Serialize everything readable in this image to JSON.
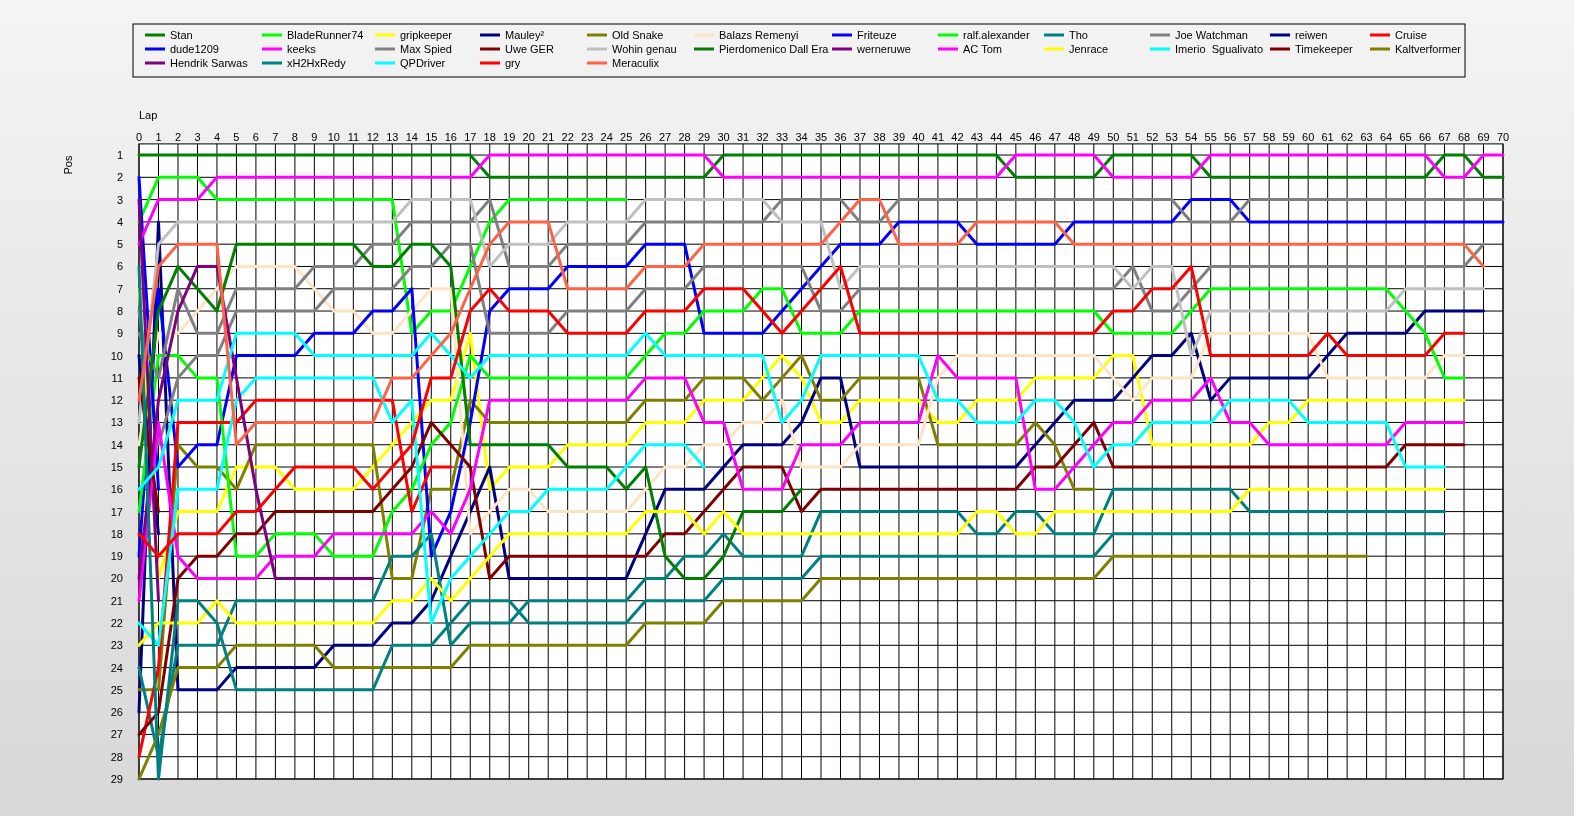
{
  "chart_data": {
    "type": "line",
    "xlabel": "Lap",
    "ylabel": "Pos",
    "xlim": [
      0,
      70
    ],
    "xticks": [
      0,
      1,
      2,
      3,
      4,
      5,
      6,
      7,
      8,
      9,
      10,
      11,
      12,
      13,
      14,
      15,
      16,
      17,
      18,
      19,
      20,
      21,
      22,
      23,
      24,
      25,
      26,
      27,
      28,
      29,
      30,
      31,
      32,
      33,
      34,
      35,
      36,
      37,
      38,
      39,
      40,
      41,
      42,
      43,
      44,
      45,
      46,
      47,
      48,
      49,
      50,
      51,
      52,
      53,
      54,
      55,
      56,
      57,
      58,
      59,
      60,
      61,
      62,
      63,
      64,
      65,
      66,
      67,
      68,
      69,
      70
    ],
    "ylim": [
      29,
      0.5
    ],
    "yticks": [
      1,
      2,
      3,
      4,
      5,
      6,
      7,
      8,
      9,
      10,
      11,
      12,
      13,
      14,
      15,
      16,
      17,
      18,
      19,
      20,
      21,
      22,
      23,
      24,
      25,
      26,
      27,
      28,
      29
    ],
    "grid": true,
    "legend": "top",
    "series": [
      {
        "name": "Stan",
        "color": "#008000",
        "x": [
          0,
          17,
          18,
          29,
          30,
          44,
          45,
          49,
          50,
          54,
          55,
          66,
          67,
          68,
          69,
          70
        ],
        "values": [
          1,
          1,
          2,
          2,
          1,
          1,
          2,
          2,
          1,
          1,
          2,
          2,
          1,
          1,
          2,
          2
        ]
      },
      {
        "name": "BladeRunner74",
        "color": "#00ff00",
        "x": [
          0,
          1,
          3,
          4,
          13,
          14,
          15,
          16,
          17,
          18,
          19,
          25
        ],
        "values": [
          4,
          2,
          2,
          3,
          3,
          9,
          8,
          8,
          6,
          4,
          3,
          3
        ]
      },
      {
        "name": "gripkeeper",
        "color": "#ffff00",
        "x": [
          0,
          1,
          2,
          4,
          5,
          7,
          8,
          11,
          12,
          13,
          14,
          15,
          16,
          17,
          18,
          19,
          21,
          22,
          25,
          26,
          28,
          29,
          31,
          32,
          33,
          34,
          35,
          36,
          37,
          40,
          41,
          42,
          43,
          45,
          46,
          49,
          50,
          51,
          52,
          57,
          58,
          59,
          60,
          68
        ],
        "values": [
          7,
          20,
          17,
          17,
          15,
          15,
          16,
          16,
          15,
          14,
          13,
          12,
          12,
          9,
          16,
          15,
          15,
          14,
          14,
          13,
          13,
          12,
          12,
          11,
          10,
          11,
          13,
          13,
          12,
          12,
          13,
          13,
          12,
          12,
          11,
          11,
          10,
          10,
          14,
          14,
          13,
          13,
          12,
          12
        ]
      },
      {
        "name": "Mauley²",
        "color": "#000080",
        "x": [
          0,
          1,
          2,
          4,
          5,
          9,
          10,
          12,
          13,
          14,
          15,
          16,
          17,
          18,
          19,
          25,
          26,
          27,
          29,
          30,
          31,
          33,
          34,
          35,
          36,
          37,
          45,
          46,
          47,
          48,
          50,
          51,
          52,
          53,
          54,
          55,
          56,
          60,
          61,
          62,
          65,
          66,
          69
        ],
        "values": [
          26,
          4,
          25,
          25,
          24,
          24,
          23,
          23,
          22,
          22,
          21,
          19,
          17,
          15,
          20,
          20,
          18,
          16,
          16,
          15,
          14,
          14,
          13,
          11,
          11,
          15,
          15,
          14,
          13,
          12,
          12,
          11,
          10,
          10,
          9,
          12,
          11,
          11,
          10,
          9,
          9,
          8,
          8
        ]
      },
      {
        "name": "Old Snake",
        "color": "#808000",
        "x": [
          0,
          1,
          2,
          3,
          4,
          5,
          6,
          12,
          13,
          14,
          15,
          16,
          17,
          18,
          25,
          26,
          28,
          29,
          31,
          32,
          33,
          34,
          35,
          36,
          37,
          40,
          41,
          45,
          46,
          47,
          48,
          49
        ],
        "values": [
          25,
          25,
          14,
          15,
          15,
          16,
          14,
          14,
          20,
          20,
          16,
          16,
          12,
          13,
          13,
          12,
          12,
          11,
          11,
          12,
          11,
          10,
          12,
          12,
          11,
          11,
          14,
          14,
          13,
          14,
          16,
          16
        ]
      },
      {
        "name": "Balazs Remenyi",
        "color": "#ffe4c4",
        "x": [
          0,
          1,
          2,
          3,
          4,
          5,
          8,
          9,
          10,
          11,
          12,
          13,
          14,
          15,
          16,
          17,
          18,
          19,
          20,
          21,
          25,
          26,
          27,
          28,
          29,
          30,
          31,
          32,
          33,
          34,
          36,
          37,
          40,
          41,
          42,
          49,
          50,
          51,
          52,
          54,
          55,
          60,
          61,
          66,
          67,
          68
        ],
        "values": [
          14,
          9,
          9,
          8,
          7,
          6,
          6,
          7,
          8,
          8,
          9,
          9,
          8,
          7,
          7,
          18,
          17,
          16,
          16,
          17,
          17,
          16,
          15,
          15,
          14,
          14,
          13,
          13,
          12,
          15,
          15,
          14,
          14,
          11,
          10,
          10,
          11,
          12,
          11,
          11,
          9,
          9,
          11,
          11,
          10,
          10
        ]
      },
      {
        "name": "Friteuze",
        "color": "#0000ff",
        "x": [
          0,
          1,
          2,
          3,
          4,
          5,
          8,
          9,
          11,
          12,
          13,
          14,
          15,
          16,
          17,
          18,
          19,
          21,
          22,
          25,
          26,
          28,
          29,
          32,
          33,
          34,
          35,
          36,
          38,
          39,
          42,
          43,
          47,
          48,
          53,
          54,
          56,
          57,
          70
        ],
        "values": [
          19,
          7,
          15,
          14,
          14,
          10,
          10,
          9,
          9,
          8,
          8,
          7,
          19,
          17,
          13,
          8,
          7,
          7,
          6,
          6,
          5,
          5,
          9,
          9,
          8,
          7,
          6,
          5,
          5,
          4,
          4,
          5,
          5,
          4,
          4,
          3,
          3,
          4,
          4
        ]
      },
      {
        "name": "ralf.alexander",
        "color": "#00ff00",
        "x": [
          0,
          1,
          2,
          3,
          4,
          5,
          6,
          7,
          9,
          10,
          12,
          13,
          14,
          15,
          16,
          17,
          18,
          25,
          26,
          27,
          28,
          29,
          31,
          32,
          33,
          34,
          36,
          37,
          49,
          50,
          53,
          54,
          55,
          64,
          65,
          66,
          67,
          68
        ],
        "values": [
          17,
          10,
          10,
          11,
          11,
          19,
          19,
          18,
          18,
          19,
          19,
          17,
          16,
          14,
          13,
          10,
          11,
          11,
          10,
          9,
          9,
          8,
          8,
          7,
          7,
          9,
          9,
          8,
          8,
          9,
          9,
          8,
          7,
          7,
          8,
          9,
          11,
          11
        ]
      },
      {
        "name": "Tho",
        "color": "#008080",
        "x": [
          0,
          1,
          2,
          4,
          5,
          12,
          13,
          14,
          15,
          16,
          17,
          19,
          20,
          25,
          26,
          27,
          28,
          29,
          30,
          31,
          34,
          35,
          42,
          43,
          44,
          45,
          46,
          47,
          49,
          50,
          56,
          57,
          67
        ],
        "values": [
          24,
          28,
          23,
          23,
          21,
          21,
          19,
          19,
          18,
          23,
          22,
          22,
          21,
          21,
          20,
          20,
          19,
          19,
          18,
          19,
          19,
          17,
          17,
          18,
          18,
          17,
          17,
          18,
          18,
          16,
          16,
          17,
          17
        ]
      },
      {
        "name": "Joe Watchman",
        "color": "#808080",
        "x": [
          0,
          1,
          2,
          3,
          4,
          5,
          9,
          10,
          13,
          14,
          15,
          16,
          17,
          18,
          21,
          22,
          25,
          26,
          28,
          29,
          34,
          35,
          36,
          37,
          50,
          51,
          52,
          53,
          54,
          55,
          68,
          69
        ],
        "values": [
          8,
          14,
          11,
          10,
          10,
          8,
          8,
          7,
          7,
          6,
          6,
          5,
          5,
          9,
          9,
          8,
          8,
          7,
          7,
          6,
          6,
          8,
          8,
          7,
          7,
          6,
          8,
          8,
          7,
          6,
          6,
          5
        ]
      },
      {
        "name": "reiwen",
        "color": "#000080",
        "x": [
          0,
          1
        ],
        "values": [
          10,
          18
        ]
      },
      {
        "name": "Cruise",
        "color": "#ff0000",
        "x": [
          0,
          1,
          2,
          5,
          6,
          13,
          14,
          15,
          16
        ],
        "values": [
          28,
          24,
          13,
          13,
          12,
          12,
          17,
          15,
          15
        ]
      },
      {
        "name": "dude1209",
        "color": "#0000ff",
        "x": [
          0,
          1
        ],
        "values": [
          2,
          16
        ]
      },
      {
        "name": "keeks",
        "color": "#ff00ff",
        "x": [
          0,
          1,
          3,
          4,
          17,
          18,
          29,
          30,
          44,
          45,
          49,
          50,
          54,
          55,
          66,
          67,
          68,
          69,
          70
        ],
        "values": [
          5,
          3,
          3,
          2,
          2,
          1,
          1,
          2,
          2,
          1,
          1,
          2,
          2,
          1,
          1,
          2,
          2,
          1,
          1
        ]
      },
      {
        "name": "Max Spied",
        "color": "#808080",
        "x": [
          0,
          1,
          2,
          3,
          4,
          5,
          8,
          9,
          11,
          12,
          13,
          14,
          17,
          18,
          19,
          21,
          22,
          25,
          26,
          32,
          33,
          36,
          37,
          38,
          39,
          53,
          54,
          56,
          57,
          70
        ],
        "values": [
          9,
          11,
          7,
          9,
          9,
          7,
          7,
          6,
          6,
          5,
          5,
          4,
          4,
          3,
          6,
          6,
          5,
          5,
          4,
          4,
          3,
          3,
          4,
          4,
          3,
          3,
          4,
          4,
          3,
          3
        ]
      },
      {
        "name": "Uwe GER",
        "color": "#800000",
        "x": [
          0,
          1,
          2,
          3,
          4,
          5,
          6,
          7,
          12,
          13,
          14,
          15,
          16,
          17,
          18,
          19,
          26,
          27,
          28,
          29,
          30,
          31,
          33,
          34,
          35,
          45,
          46,
          47,
          48,
          49,
          50,
          64,
          65,
          68
        ],
        "values": [
          27,
          26,
          20,
          19,
          19,
          18,
          18,
          17,
          17,
          16,
          15,
          13,
          14,
          15,
          20,
          19,
          19,
          18,
          18,
          17,
          16,
          15,
          15,
          17,
          16,
          16,
          15,
          15,
          14,
          13,
          15,
          15,
          14,
          14
        ]
      },
      {
        "name": "Wohin genau",
        "color": "#c0c0c0",
        "x": [
          0,
          1,
          2,
          13,
          14,
          17,
          18,
          19,
          21,
          22,
          25,
          26,
          32,
          33,
          35,
          36,
          37,
          50,
          51,
          52,
          53,
          54,
          55,
          64,
          65,
          69
        ],
        "values": [
          13,
          5,
          4,
          4,
          3,
          3,
          6,
          5,
          5,
          4,
          4,
          3,
          3,
          4,
          4,
          7,
          6,
          6,
          7,
          6,
          6,
          10,
          8,
          8,
          7,
          7
        ]
      },
      {
        "name": "Pierdomenico Dall Era",
        "color": "#008000",
        "x": [
          0,
          1,
          2,
          3,
          4,
          5,
          11,
          12,
          13,
          14,
          15,
          16,
          17,
          21,
          22,
          24,
          25,
          26,
          27,
          28,
          29,
          30,
          31,
          33,
          34
        ],
        "values": [
          15,
          8,
          6,
          7,
          8,
          5,
          5,
          6,
          6,
          5,
          5,
          6,
          14,
          14,
          15,
          15,
          16,
          15,
          19,
          20,
          20,
          19,
          17,
          17,
          16
        ]
      },
      {
        "name": "werneruwe",
        "color": "#800080",
        "x": [
          0,
          1
        ],
        "values": [
          3,
          21
        ]
      },
      {
        "name": "AC Tom",
        "color": "#ff00ff",
        "x": [
          0,
          1,
          2,
          3,
          6,
          7,
          9,
          10,
          14,
          15,
          16,
          17,
          18,
          25,
          26,
          28,
          29,
          30,
          31,
          33,
          34,
          36,
          37,
          40,
          41,
          42,
          45,
          46,
          47,
          48,
          49,
          50,
          51,
          52,
          54,
          55,
          56,
          57,
          58,
          64,
          65,
          68
        ],
        "values": [
          21,
          13,
          19,
          20,
          20,
          19,
          19,
          18,
          18,
          17,
          18,
          16,
          12,
          12,
          11,
          11,
          13,
          13,
          16,
          16,
          14,
          14,
          13,
          13,
          10,
          11,
          11,
          16,
          16,
          15,
          14,
          13,
          13,
          12,
          12,
          11,
          13,
          13,
          14,
          14,
          13,
          13
        ]
      },
      {
        "name": "Jenrace",
        "color": "#ffff00",
        "x": [
          0,
          1,
          3,
          4,
          5,
          12,
          13,
          14,
          15,
          16,
          17,
          18,
          19,
          25,
          26,
          28,
          29,
          30,
          31,
          42,
          43,
          44,
          45,
          46,
          47,
          56,
          57,
          67
        ],
        "values": [
          23,
          22,
          22,
          21,
          22,
          22,
          21,
          21,
          20,
          21,
          20,
          19,
          18,
          18,
          17,
          17,
          18,
          17,
          18,
          18,
          17,
          17,
          18,
          18,
          17,
          17,
          16,
          16
        ]
      },
      {
        "name": "Imerio  Sgualivato",
        "color": "#00ffff",
        "x": [
          0,
          1,
          2,
          4,
          5,
          6,
          12,
          13,
          14,
          15,
          16,
          17,
          18,
          19,
          20,
          21,
          24,
          25,
          26,
          28,
          29
        ],
        "values": [
          22,
          23,
          16,
          16,
          12,
          11,
          11,
          13,
          12,
          22,
          20,
          19,
          18,
          17,
          17,
          16,
          16,
          15,
          14,
          14,
          15
        ]
      },
      {
        "name": "Timekeeper",
        "color": "#800000",
        "x": [
          0,
          1
        ],
        "values": [
          11,
          17
        ]
      },
      {
        "name": "Kaltverformer",
        "color": "#808000",
        "x": [
          0,
          1,
          2,
          4,
          5,
          9,
          10,
          16,
          17,
          25,
          26,
          29,
          30,
          34,
          35,
          49,
          50,
          63
        ],
        "values": [
          29,
          27,
          24,
          24,
          23,
          23,
          24,
          24,
          23,
          23,
          22,
          22,
          21,
          21,
          20,
          20,
          19,
          19
        ]
      },
      {
        "name": "Hendrik Sarwas",
        "color": "#800080",
        "x": [
          0,
          1,
          2,
          3,
          4,
          5,
          6,
          7,
          12
        ],
        "values": [
          20,
          12,
          8,
          6,
          6,
          11,
          16,
          20,
          20
        ]
      },
      {
        "name": "xH2HxRedy",
        "color": "#008080",
        "x": [
          0,
          1,
          2,
          3,
          4,
          5,
          12,
          13,
          15,
          16,
          17,
          19,
          20,
          25,
          26,
          29,
          30,
          34,
          35,
          49,
          50,
          67
        ],
        "values": [
          6,
          29,
          21,
          21,
          22,
          25,
          25,
          23,
          23,
          22,
          21,
          21,
          22,
          22,
          21,
          21,
          20,
          20,
          19,
          19,
          18,
          18
        ]
      },
      {
        "name": "QPDriver",
        "color": "#00ffff",
        "x": [
          0,
          1,
          2,
          4,
          5,
          8,
          9,
          14,
          15,
          16,
          17,
          18,
          25,
          26,
          27,
          32,
          33,
          34,
          35,
          40,
          41,
          42,
          43,
          45,
          46,
          47,
          48,
          49,
          50,
          51,
          52,
          55,
          56,
          59,
          60,
          64,
          65,
          67
        ],
        "values": [
          16,
          15,
          12,
          12,
          9,
          9,
          10,
          10,
          9,
          10,
          11,
          10,
          10,
          9,
          10,
          10,
          13,
          12,
          10,
          10,
          12,
          12,
          13,
          13,
          12,
          12,
          13,
          15,
          14,
          14,
          13,
          13,
          12,
          12,
          13,
          13,
          15,
          15
        ]
      },
      {
        "name": "gry",
        "color": "#ff0000",
        "x": [
          0,
          1,
          2,
          4,
          5,
          6,
          7,
          8,
          11,
          12,
          13,
          14,
          15,
          16,
          17,
          18,
          19,
          21,
          22,
          25,
          26,
          28,
          29,
          31,
          32,
          33,
          34,
          35,
          36,
          37,
          49,
          50,
          51,
          52,
          53,
          54,
          55,
          60,
          61,
          62,
          66,
          67,
          68
        ],
        "values": [
          18,
          19,
          18,
          18,
          17,
          17,
          16,
          15,
          15,
          16,
          15,
          14,
          11,
          11,
          8,
          7,
          8,
          8,
          9,
          9,
          8,
          8,
          7,
          7,
          8,
          9,
          8,
          7,
          6,
          9,
          9,
          8,
          8,
          7,
          7,
          6,
          10,
          10,
          9,
          10,
          10,
          9,
          9
        ]
      },
      {
        "name": "Meraculix",
        "color": "#ff6347",
        "x": [
          0,
          1,
          2,
          4,
          5,
          6,
          12,
          13,
          14,
          15,
          16,
          17,
          18,
          19,
          21,
          22,
          25,
          26,
          28,
          29,
          35,
          36,
          37,
          38,
          39,
          42,
          43,
          47,
          48,
          68,
          69
        ],
        "values": [
          12,
          6,
          5,
          5,
          14,
          13,
          13,
          11,
          11,
          10,
          9,
          7,
          5,
          4,
          4,
          7,
          7,
          6,
          6,
          5,
          5,
          4,
          3,
          3,
          5,
          5,
          4,
          4,
          5,
          5,
          6
        ]
      }
    ]
  }
}
